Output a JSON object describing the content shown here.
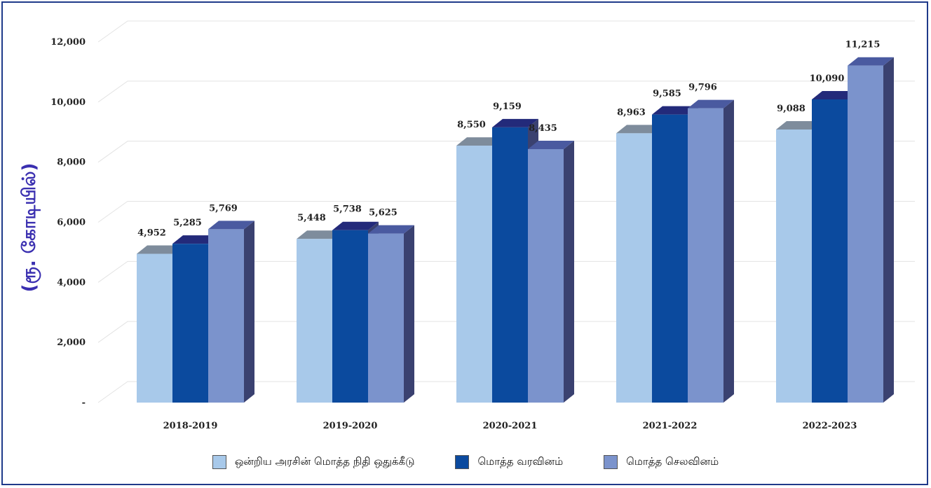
{
  "chart_data": {
    "type": "bar",
    "ylabel": "(ரூ. கோடியில்)",
    "categories": [
      "2018-2019",
      "2019-2020",
      "2020-2021",
      "2021-2022",
      "2022-2023"
    ],
    "ylim": [
      0,
      12000
    ],
    "yticks": [
      0,
      2000,
      4000,
      6000,
      8000,
      10000,
      12000
    ],
    "ytick_labels": [
      "-",
      "2,000",
      "4,000",
      "6,000",
      "8,000",
      "10,000",
      "12,000"
    ],
    "grid": true,
    "legend_position": "bottom",
    "series": [
      {
        "name": "ஒன்றிய அரசின் மொத்த நிதி ஒதுக்கீடு",
        "color": "#a8c9ea",
        "values": [
          4952,
          5448,
          8550,
          8963,
          9088
        ],
        "labels": [
          "4,952",
          "5,448",
          "8,550",
          "8,963",
          "9,088"
        ]
      },
      {
        "name": "மொத்த வரவினம்",
        "color": "#0b4a9e",
        "values": [
          5285,
          5738,
          9159,
          9585,
          10090
        ],
        "labels": [
          "5,285",
          "5,738",
          "9,159",
          "9,585",
          "10,090"
        ]
      },
      {
        "name": "மொத்த செலவினம்",
        "color": "#7b93cc",
        "values": [
          5769,
          5625,
          8435,
          9796,
          11215
        ],
        "labels": [
          "5,769",
          "5,625",
          "8,435",
          "9,796",
          "11,215"
        ]
      }
    ]
  }
}
